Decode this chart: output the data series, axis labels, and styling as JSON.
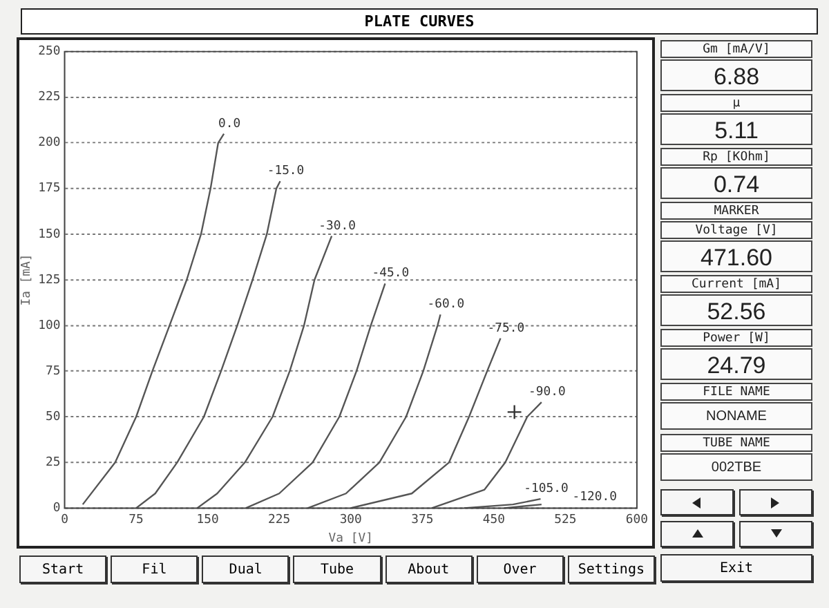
{
  "chart_data": {
    "type": "line",
    "title": "PLATE CURVES",
    "xlabel": "Va [V]",
    "ylabel": "Ia [mA]",
    "xlim": [
      0,
      600
    ],
    "xticks": [
      0,
      75,
      150,
      225,
      300,
      375,
      450,
      525,
      600
    ],
    "ylim": [
      0,
      250
    ],
    "yticks": [
      0,
      25,
      50,
      75,
      100,
      125,
      150,
      175,
      200,
      225,
      250
    ],
    "grid": "y",
    "legend": false,
    "marker": "none",
    "line_style": "solid",
    "series": [
      {
        "name": "0.0",
        "color": "#555555",
        "x": [
          19,
          53,
          75,
          92,
          110,
          128,
          143,
          153,
          161,
          167
        ],
        "values": [
          2,
          25,
          50,
          75,
          100,
          125,
          150,
          175,
          200,
          205
        ]
      },
      {
        "name": "-15.0",
        "color": "#555555",
        "x": [
          75,
          95,
          118,
          146,
          164,
          181,
          197,
          212,
          222,
          226
        ],
        "values": [
          0,
          8,
          25,
          50,
          75,
          100,
          125,
          150,
          175,
          179
        ]
      },
      {
        "name": "-30.0",
        "color": "#555555",
        "x": [
          139,
          160,
          189,
          218,
          236,
          251,
          262,
          280
        ],
        "values": [
          0,
          8,
          25,
          50,
          75,
          100,
          125,
          149
        ]
      },
      {
        "name": "-45.0",
        "color": "#555555",
        "x": [
          190,
          225,
          260,
          288,
          306,
          321,
          336
        ],
        "values": [
          0,
          8,
          25,
          50,
          75,
          100,
          123
        ]
      },
      {
        "name": "-60.0",
        "color": "#555555",
        "x": [
          255,
          295,
          330,
          358,
          376,
          391,
          394
        ],
        "values": [
          0,
          8,
          25,
          50,
          75,
          100,
          106
        ]
      },
      {
        "name": "-75.0",
        "color": "#555555",
        "x": [
          300,
          364,
          403,
          424,
          443,
          457
        ],
        "values": [
          0,
          8,
          25,
          50,
          75,
          93
        ]
      },
      {
        "name": "-90.0",
        "color": "#555555",
        "x": [
          385,
          440,
          462,
          485,
          500
        ],
        "values": [
          0,
          10,
          25,
          50,
          58
        ]
      },
      {
        "name": "-105.0",
        "color": "#555555",
        "x": [
          419,
          470,
          499
        ],
        "values": [
          0,
          2,
          5
        ]
      },
      {
        "name": "-120.0",
        "color": "#555555",
        "x": [
          461,
          500
        ],
        "values": [
          0,
          2
        ]
      },
      {
        "type": "scatter",
        "marker": "cross",
        "color": "#333333",
        "x": [
          471.6
        ],
        "values": [
          52.6
        ]
      }
    ],
    "annotations": [
      "Gm [mA/V]",
      "6.88",
      "μ",
      "5.11",
      "Rp [KOhm]",
      "0.74",
      "MARKER",
      "Voltage [V]",
      "471.60",
      "Current [mA]",
      "52.56",
      "Power [W]",
      "24.79",
      "FILE NAME",
      "NONAME",
      "TUBE NAME",
      "002TBE",
      "Exit",
      "Start",
      "Fil",
      "Dual",
      "Tube",
      "About",
      "Over",
      "Settings"
    ]
  }
}
